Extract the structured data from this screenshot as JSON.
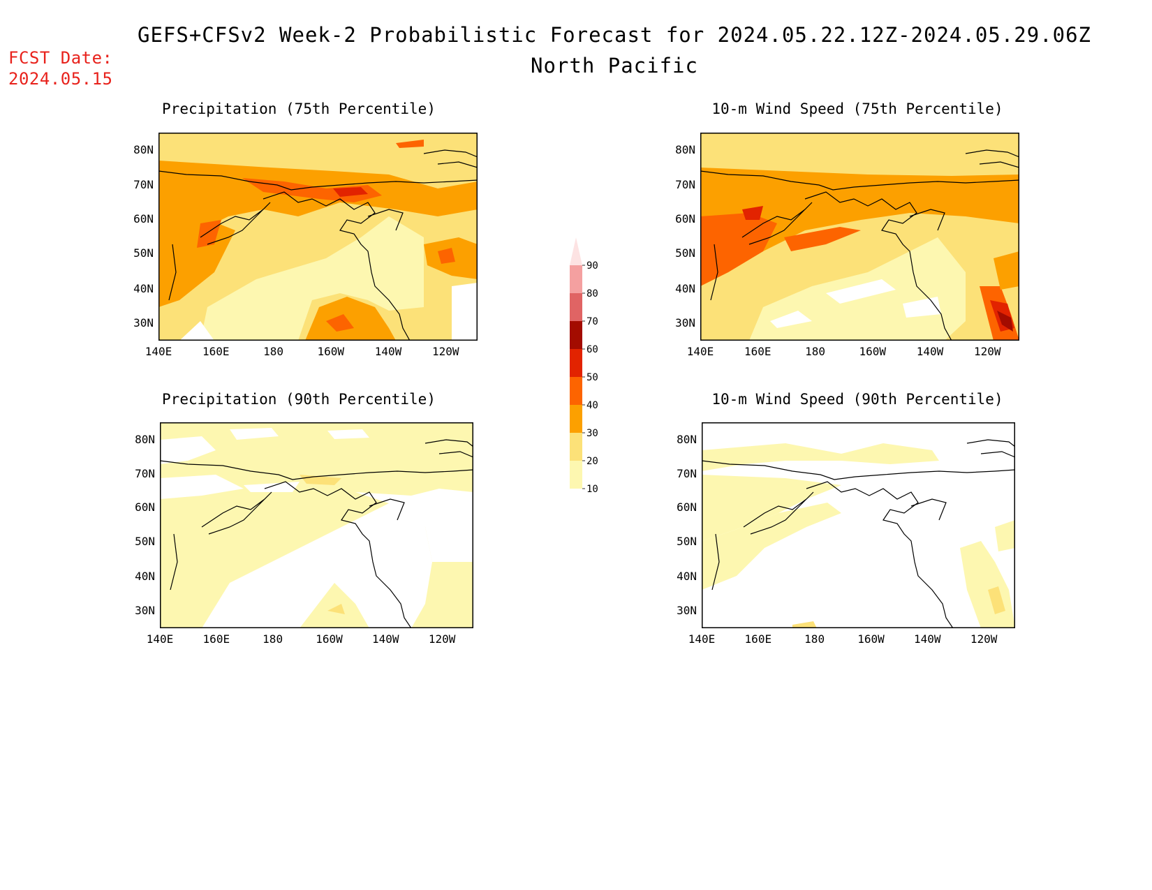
{
  "header": {
    "title_line1": "GEFS+CFSv2 Week-2 Probabilistic Forecast for 2024.05.22.12Z-2024.05.29.06Z",
    "title_line2": "North Pacific",
    "fcst_label": "FCST Date:",
    "fcst_value": "2024.05.15"
  },
  "axes": {
    "lat_labels": [
      "80N",
      "70N",
      "60N",
      "50N",
      "40N",
      "30N"
    ],
    "lon_labels": [
      "140E",
      "160E",
      "180",
      "160W",
      "140W",
      "120W"
    ]
  },
  "panels": [
    {
      "title": "Precipitation (75th Percentile)"
    },
    {
      "title": "10-m Wind Speed (75th Percentile)"
    },
    {
      "title": "Precipitation (90th Percentile)"
    },
    {
      "title": "10-m Wind Speed (90th Percentile)"
    }
  ],
  "colorbar": {
    "levels": [
      "90",
      "80",
      "70",
      "60",
      "50",
      "40",
      "30",
      "20",
      "10"
    ],
    "colors": [
      "#fde3e3",
      "#f4a0a0",
      "#e06464",
      "#a30c00",
      "#e22300",
      "#fd6400",
      "#fca000",
      "#fce178",
      "#fdf7b0"
    ]
  },
  "palette": {
    "p10": "#fdf7b0",
    "p20": "#fce178",
    "p30": "#fca000",
    "p40": "#fd6400",
    "p50": "#e22300",
    "p60": "#a30c00"
  }
}
